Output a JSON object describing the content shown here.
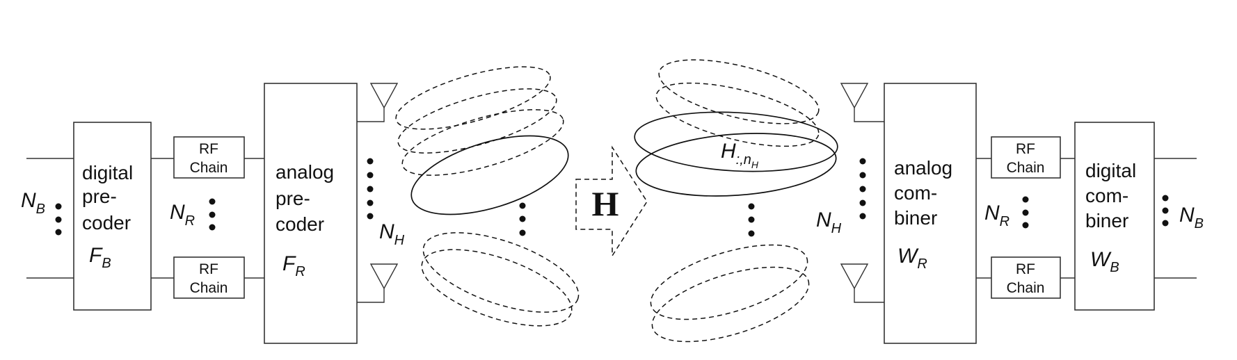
{
  "transmitter": {
    "digital_precoder": {
      "lines": [
        "digital",
        "pre-",
        "coder"
      ],
      "symbol": "F",
      "sub": "B"
    },
    "analog_precoder": {
      "lines": [
        "analog",
        "pre-",
        "coder"
      ],
      "symbol": "F",
      "sub": "R"
    },
    "rf_chain_label": [
      "RF",
      "Chain"
    ],
    "n_b": {
      "symbol": "N",
      "sub": "B"
    },
    "n_r": {
      "symbol": "N",
      "sub": "R"
    },
    "n_h": {
      "symbol": "N",
      "sub": "H"
    }
  },
  "channel": {
    "label": "H",
    "beam_label": {
      "symbol": "H",
      "sub": ":,n",
      "subsub": "H"
    }
  },
  "receiver": {
    "analog_combiner": {
      "lines": [
        "analog",
        "com-",
        "biner"
      ],
      "symbol": "W",
      "sub": "R"
    },
    "digital_combiner": {
      "lines": [
        "digital",
        "com-",
        "biner"
      ],
      "symbol": "W",
      "sub": "B"
    },
    "rf_chain_label": [
      "RF",
      "Chain"
    ],
    "n_b": {
      "symbol": "N",
      "sub": "B"
    },
    "n_r": {
      "symbol": "N",
      "sub": "R"
    },
    "n_h": {
      "symbol": "N",
      "sub": "H"
    }
  }
}
